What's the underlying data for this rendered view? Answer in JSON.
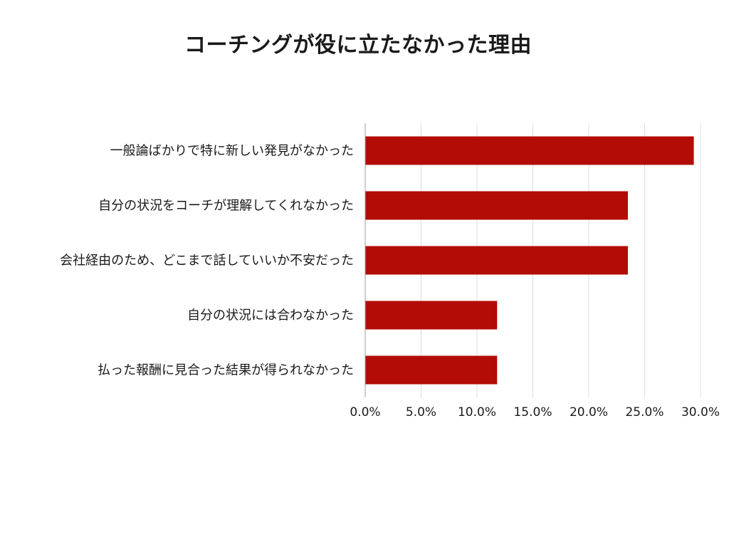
{
  "chart_data": {
    "type": "bar",
    "orientation": "horizontal",
    "title": "コーチングが役に立たなかった理由",
    "categories": [
      "一般論ばかりで特に新しい発見がなかった",
      "自分の状況をコーチが理解してくれなかった",
      "会社経由のため、どこまで話していいか不安だった",
      "自分の状況には合わなかった",
      "払った報酬に見合った結果が得られなかった"
    ],
    "values": [
      29.4,
      23.5,
      23.5,
      11.8,
      11.8
    ],
    "xlim": [
      0,
      30
    ],
    "x_ticks": [
      0,
      5,
      10,
      15,
      20,
      25,
      30
    ],
    "x_tick_labels": [
      "0.0%",
      "5.0%",
      "10.0%",
      "15.0%",
      "20.0%",
      "25.0%",
      "30.0%"
    ],
    "xlabel": "",
    "ylabel": "",
    "bar_color": "#b30c06",
    "grid": "vertical",
    "legend": "none"
  }
}
